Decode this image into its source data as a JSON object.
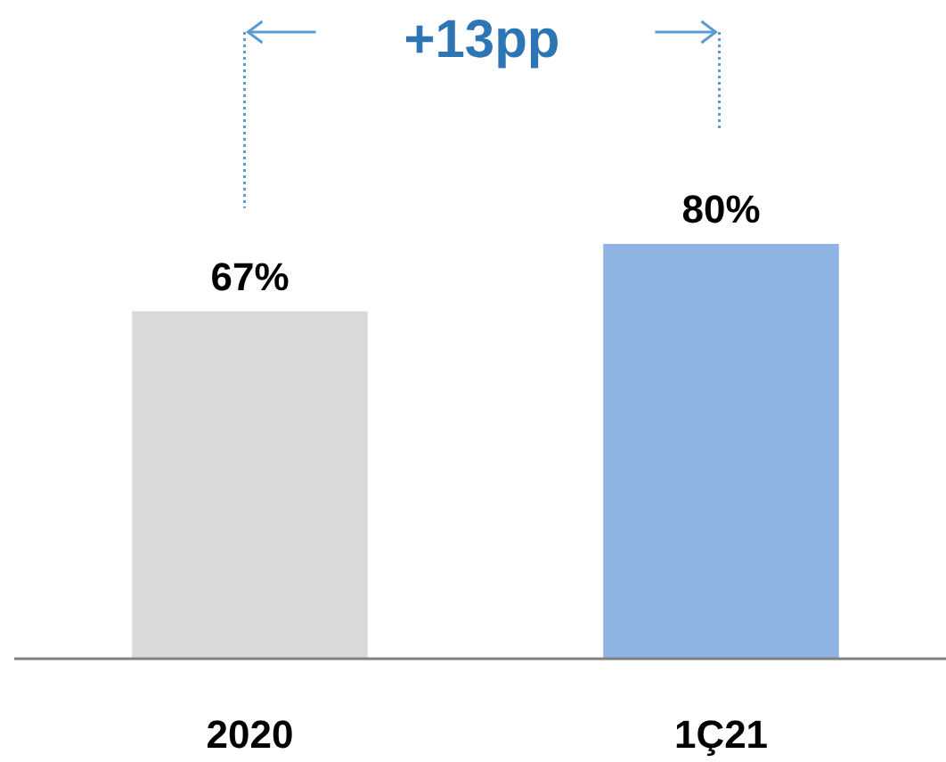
{
  "chart_data": {
    "type": "bar",
    "categories": [
      "2020",
      "1Ç21"
    ],
    "values": [
      67,
      80
    ],
    "colors": [
      "#d9d9d9",
      "#8eb4e3"
    ],
    "data_labels": true,
    "value_labels": [
      "67%",
      "80%"
    ],
    "annotations": [
      "+13pp"
    ]
  }
}
